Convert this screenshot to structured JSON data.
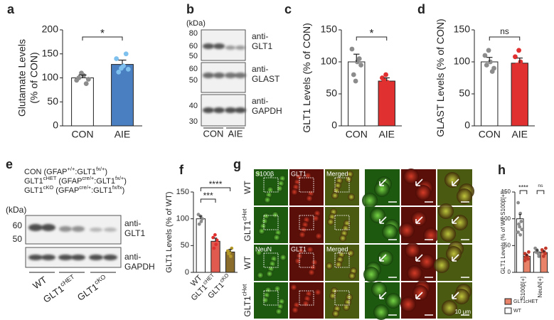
{
  "chart_data": [
    {
      "type": "bar",
      "panel": "a",
      "ylabel": [
        "Glutamate Levels",
        "(% of CON)"
      ],
      "categories": [
        "CON",
        "AIE"
      ],
      "values": [
        100,
        128
      ],
      "errors": [
        6,
        9
      ],
      "points": [
        [
          95,
          105,
          88,
          100,
          110,
          97
        ],
        [
          140,
          125,
          150,
          112,
          120,
          118
        ]
      ],
      "colors": [
        "#ffffff",
        "#4a7fc1"
      ],
      "point_colors": [
        "#8c8c8c",
        "#7ec0ee"
      ],
      "ylim": [
        0,
        200
      ],
      "yticks": [
        0,
        50,
        100,
        150,
        200
      ],
      "significance": [
        "*"
      ]
    },
    {
      "type": "bar",
      "panel": "c",
      "ylabel": [
        "GLT1 Levels (% of CON)"
      ],
      "categories": [
        "CON",
        "AIE"
      ],
      "values": [
        100,
        70
      ],
      "errors": [
        12,
        5
      ],
      "points": [
        [
          120,
          100,
          105,
          80,
          70,
          95
        ],
        [
          75,
          68,
          60,
          72,
          80,
          65
        ]
      ],
      "colors": [
        "#ffffff",
        "#e0302f"
      ],
      "point_colors": [
        "#8c8c8c",
        "#e0302f"
      ],
      "ylim": [
        0,
        150
      ],
      "yticks": [
        0,
        50,
        100,
        150
      ],
      "significance": [
        "*"
      ]
    },
    {
      "type": "bar",
      "panel": "d",
      "ylabel": [
        "GLAST Levels (% of CON)"
      ],
      "categories": [
        "CON",
        "AIE"
      ],
      "values": [
        100,
        98
      ],
      "errors": [
        7,
        8
      ],
      "points": [
        [
          110,
          100,
          85,
          95,
          118,
          90
        ],
        [
          108,
          100,
          85,
          95,
          118,
          80
        ]
      ],
      "colors": [
        "#ffffff",
        "#e0302f"
      ],
      "point_colors": [
        "#8c8c8c",
        "#e0302f"
      ],
      "ylim": [
        0,
        150
      ],
      "yticks": [
        0,
        50,
        100,
        150
      ],
      "significance": [
        "ns"
      ]
    },
    {
      "type": "bar",
      "panel": "f",
      "ylabel": [
        "GLT1 Levels (% of WT)"
      ],
      "categories": [
        [
          "WT"
        ],
        [
          "GLT1",
          "cHET"
        ],
        [
          "GLT1",
          "cKO"
        ]
      ],
      "values": [
        100,
        58,
        38
      ],
      "errors": [
        5,
        6,
        5
      ],
      "points": [
        [
          108,
          95,
          100,
          90,
          105
        ],
        [
          65,
          52,
          60,
          45,
          70
        ],
        [
          40,
          30,
          45,
          35,
          38
        ]
      ],
      "colors": [
        "#ffffff",
        "#e05a4f",
        "#8a6d2c"
      ],
      "point_colors": [
        "#8c8c8c",
        "#e0302f",
        "#b59a2a"
      ],
      "ylim": [
        0,
        150
      ],
      "yticks": [
        0,
        50,
        100,
        150
      ],
      "significance": [
        "***",
        "****"
      ]
    },
    {
      "type": "grouped-bar",
      "panel": "h",
      "ylabel": [
        "GLT1 Levels (% of WT S100β[+])"
      ],
      "categories": [
        "S100β[+]",
        "NeuN[+]"
      ],
      "series": [
        {
          "name": "WT",
          "color": "#ffffff",
          "point_color": "#8c8c8c",
          "values": [
            100,
            38
          ],
          "errors": [
            8,
            4
          ],
          "points": [
            [
              130,
              110,
              95,
              90,
              85,
              80,
              75,
              70
            ],
            [
              45,
              40,
              35,
              38,
              42,
              30
            ]
          ]
        },
        {
          "name": "GLT1cHET",
          "color": "#e8836a",
          "point_color": "#c0392b",
          "values": [
            30,
            37
          ],
          "errors": [
            3,
            3
          ],
          "points": [
            [
              35,
              30,
              25,
              28,
              32,
              38,
              22
            ],
            [
              42,
              38,
              35,
              40,
              30,
              45
            ]
          ]
        }
      ],
      "ylim": [
        0,
        150
      ],
      "yticks": [
        0,
        50,
        100,
        150
      ],
      "significance": [
        "****",
        "ns"
      ]
    }
  ],
  "blot_b": {
    "panel": "b",
    "unit": "(kDa)",
    "markers": [
      "80",
      "60",
      "50",
      "60",
      "50",
      "40",
      "30"
    ],
    "antibodies": [
      [
        "anti-",
        "GLT1"
      ],
      [
        "anti-",
        "GLAST"
      ],
      [
        "anti-",
        "GAPDH"
      ]
    ],
    "lanes": [
      "CON",
      "AIE"
    ]
  },
  "blot_e": {
    "panel": "e",
    "legend": [
      [
        "CON (GFAP",
        "+/+",
        ":GLT1",
        "fx/+",
        ")"
      ],
      [
        "GLT1",
        "cHET",
        " (GFAP",
        "cre/+",
        ":GLT1",
        "fx/+",
        ")"
      ],
      [
        "GLT1",
        "cKO",
        " (GFAP",
        "cre/+",
        ":GLT1",
        "fx/fx",
        ")"
      ]
    ],
    "unit": "(kDa)",
    "markers": [
      "60",
      "50"
    ],
    "antibodies": [
      [
        "anti-",
        "GLT1"
      ],
      [
        "anti-",
        "GAPDH"
      ]
    ],
    "lanes": [
      [
        "WT"
      ],
      [
        "GLT1",
        "cHET"
      ],
      [
        "GLT1",
        "cKO"
      ]
    ]
  },
  "images_g": {
    "panel": "g",
    "channels": [
      "S100β",
      "GLT1",
      "Merged",
      "NeuN",
      "GLT1",
      "Merged"
    ],
    "rows": [
      [
        "WT"
      ],
      [
        "GLT1",
        "cHet"
      ],
      [
        "WT"
      ],
      [
        "GLT1",
        "cHet"
      ]
    ],
    "scale_bar": "10 μm"
  }
}
